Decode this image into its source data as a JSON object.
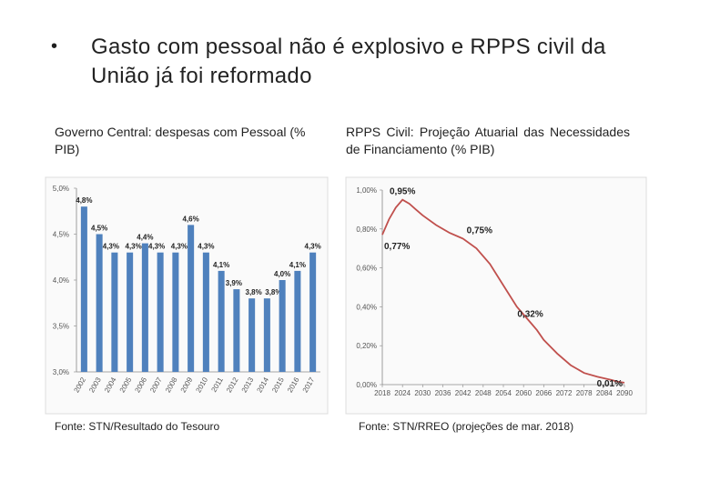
{
  "slide": {
    "bullet": "•",
    "title": "Gasto com pessoal não é explosivo e RPPS civil da União já foi reformado"
  },
  "left": {
    "subtitle": "Governo Central: despesas com Pessoal (% PIB)",
    "source": "Fonte: STN/Resultado do Tesouro"
  },
  "right": {
    "subtitle": "RPPS Civil: Projeção Atuarial das Necessidades de Financiamento (% PIB)",
    "source": "Fonte: STN/RREO (projeções de mar. 2018)"
  },
  "chart_data": [
    {
      "type": "bar",
      "title": "Governo Central: despesas com Pessoal (% PIB)",
      "categories": [
        "2002",
        "2003",
        "2004",
        "2005",
        "2006",
        "2007",
        "2008",
        "2009",
        "2010",
        "2011",
        "2012",
        "2013",
        "2014",
        "2015",
        "2016",
        "2017"
      ],
      "values": [
        4.8,
        4.5,
        4.3,
        4.3,
        4.4,
        4.3,
        4.3,
        4.6,
        4.3,
        4.1,
        3.9,
        3.8,
        3.8,
        4.0,
        4.1,
        4.3
      ],
      "labels": [
        "4,8%",
        "4,5%",
        "4,3%",
        "4,3%",
        "4,4%",
        "4,3%",
        "4,3%",
        "4,6%",
        "4,3%",
        "4,1%",
        "3,9%",
        "3,8%",
        "3,8%",
        "4,0%",
        "4,1%",
        "4,3%"
      ],
      "yticks": [
        "3,0%",
        "3,5%",
        "4,0%",
        "4,5%",
        "5,0%"
      ],
      "ylim": [
        3.0,
        5.0
      ],
      "color": "#4f81bd"
    },
    {
      "type": "line",
      "title": "RPPS Civil: Projeção Atuarial das Necessidades de Financiamento (% PIB)",
      "x": [
        2018,
        2020,
        2022,
        2024,
        2026,
        2028,
        2030,
        2034,
        2038,
        2042,
        2046,
        2050,
        2054,
        2058,
        2062,
        2064,
        2066,
        2070,
        2074,
        2078,
        2082,
        2086,
        2088,
        2090
      ],
      "y": [
        0.77,
        0.85,
        0.91,
        0.95,
        0.93,
        0.9,
        0.87,
        0.82,
        0.78,
        0.75,
        0.7,
        0.62,
        0.51,
        0.4,
        0.32,
        0.28,
        0.23,
        0.16,
        0.1,
        0.06,
        0.04,
        0.025,
        0.015,
        0.01
      ],
      "annotations": [
        {
          "x": 2018,
          "y": 0.77,
          "text": "0,77%"
        },
        {
          "x": 2024,
          "y": 0.95,
          "text": "0,95%"
        },
        {
          "x": 2042,
          "y": 0.75,
          "text": "0,75%"
        },
        {
          "x": 2062,
          "y": 0.32,
          "text": "0,32%"
        },
        {
          "x": 2090,
          "y": 0.01,
          "text": "0,01%"
        }
      ],
      "xticks": [
        "2018",
        "2024",
        "2030",
        "2036",
        "2042",
        "2048",
        "2054",
        "2060",
        "2066",
        "2072",
        "2078",
        "2084",
        "2090"
      ],
      "yticks": [
        "0,00%",
        "0,20%",
        "0,40%",
        "0,60%",
        "0,80%",
        "1,00%"
      ],
      "ylim": [
        0,
        1.0
      ],
      "xlim": [
        2018,
        2090
      ],
      "color": "#c0504d"
    }
  ]
}
